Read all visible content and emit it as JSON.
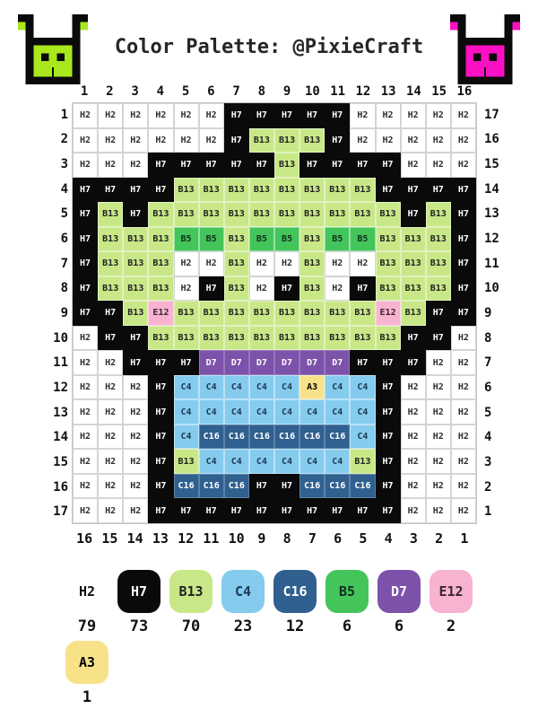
{
  "header": {
    "title": "Color Palette: @PixieCraft"
  },
  "icons": {
    "left": {
      "name": "green-monster-icon",
      "color": "#a8e81c"
    },
    "right": {
      "name": "pink-monster-icon",
      "color": "#fb10c4"
    }
  },
  "chart_data": {
    "type": "heatmap",
    "title": "Color Palette: @PixieCraft",
    "columns_top": [
      "1",
      "2",
      "3",
      "4",
      "5",
      "6",
      "7",
      "8",
      "9",
      "10",
      "11",
      "12",
      "13",
      "14",
      "15",
      "16"
    ],
    "columns_bottom": [
      "16",
      "15",
      "14",
      "13",
      "12",
      "11",
      "10",
      "9",
      "8",
      "7",
      "6",
      "5",
      "4",
      "3",
      "2",
      "1"
    ],
    "rows_left": [
      "1",
      "2",
      "3",
      "4",
      "5",
      "6",
      "7",
      "8",
      "9",
      "10",
      "11",
      "12",
      "13",
      "14",
      "15",
      "16",
      "17"
    ],
    "rows_right": [
      "17",
      "16",
      "15",
      "14",
      "13",
      "12",
      "11",
      "10",
      "9",
      "8",
      "7",
      "6",
      "5",
      "4",
      "3",
      "2",
      "1"
    ],
    "cells": [
      [
        "H2",
        "H2",
        "H2",
        "H2",
        "H2",
        "H2",
        "H7",
        "H7",
        "H7",
        "H7",
        "H7",
        "H2",
        "H2",
        "H2",
        "H2",
        "H2"
      ],
      [
        "H2",
        "H2",
        "H2",
        "H2",
        "H2",
        "H2",
        "H7",
        "B13",
        "B13",
        "B13",
        "H7",
        "H2",
        "H2",
        "H2",
        "H2",
        "H2"
      ],
      [
        "H2",
        "H2",
        "H2",
        "H7",
        "H7",
        "H7",
        "H7",
        "H7",
        "B13",
        "H7",
        "H7",
        "H7",
        "H7",
        "H2",
        "H2",
        "H2"
      ],
      [
        "H7",
        "H7",
        "H7",
        "H7",
        "B13",
        "B13",
        "B13",
        "B13",
        "B13",
        "B13",
        "B13",
        "B13",
        "H7",
        "H7",
        "H7",
        "H7"
      ],
      [
        "H7",
        "B13",
        "H7",
        "B13",
        "B13",
        "B13",
        "B13",
        "B13",
        "B13",
        "B13",
        "B13",
        "B13",
        "B13",
        "H7",
        "B13",
        "H7"
      ],
      [
        "H7",
        "B13",
        "B13",
        "B13",
        "B5",
        "B5",
        "B13",
        "B5",
        "B5",
        "B13",
        "B5",
        "B5",
        "B13",
        "B13",
        "B13",
        "H7"
      ],
      [
        "H7",
        "B13",
        "B13",
        "B13",
        "H2",
        "H2",
        "B13",
        "H2",
        "H2",
        "B13",
        "H2",
        "H2",
        "B13",
        "B13",
        "B13",
        "H7"
      ],
      [
        "H7",
        "B13",
        "B13",
        "B13",
        "H2",
        "H7",
        "B13",
        "H2",
        "H7",
        "B13",
        "H2",
        "H7",
        "B13",
        "B13",
        "B13",
        "H7"
      ],
      [
        "H7",
        "H7",
        "B13",
        "E12",
        "B13",
        "B13",
        "B13",
        "B13",
        "B13",
        "B13",
        "B13",
        "B13",
        "E12",
        "B13",
        "H7",
        "H7"
      ],
      [
        "H2",
        "H7",
        "H7",
        "B13",
        "B13",
        "B13",
        "B13",
        "B13",
        "B13",
        "B13",
        "B13",
        "B13",
        "B13",
        "H7",
        "H7",
        "H2"
      ],
      [
        "H2",
        "H2",
        "H7",
        "H7",
        "H7",
        "D7",
        "D7",
        "D7",
        "D7",
        "D7",
        "D7",
        "H7",
        "H7",
        "H7",
        "H2",
        "H2"
      ],
      [
        "H2",
        "H2",
        "H2",
        "H7",
        "C4",
        "C4",
        "C4",
        "C4",
        "C4",
        "A3",
        "C4",
        "C4",
        "H7",
        "H2",
        "H2",
        "H2"
      ],
      [
        "H2",
        "H2",
        "H2",
        "H7",
        "C4",
        "C4",
        "C4",
        "C4",
        "C4",
        "C4",
        "C4",
        "C4",
        "H7",
        "H2",
        "H2",
        "H2"
      ],
      [
        "H2",
        "H2",
        "H2",
        "H7",
        "C4",
        "C16",
        "C16",
        "C16",
        "C16",
        "C16",
        "C16",
        "C4",
        "H7",
        "H2",
        "H2",
        "H2"
      ],
      [
        "H2",
        "H2",
        "H2",
        "H7",
        "B13",
        "C4",
        "C4",
        "C4",
        "C4",
        "C4",
        "C4",
        "B13",
        "H7",
        "H2",
        "H2",
        "H2"
      ],
      [
        "H2",
        "H2",
        "H2",
        "H7",
        "C16",
        "C16",
        "C16",
        "H7",
        "H7",
        "C16",
        "C16",
        "C16",
        "H7",
        "H2",
        "H2",
        "H2"
      ],
      [
        "H2",
        "H2",
        "H2",
        "H7",
        "H7",
        "H7",
        "H7",
        "H7",
        "H7",
        "H7",
        "H7",
        "H7",
        "H7",
        "H2",
        "H2",
        "H2"
      ]
    ],
    "palette": {
      "H2": {
        "bg": "#ffffff",
        "fg": "#2e2e2e"
      },
      "H7": {
        "bg": "#0a0a0a",
        "fg": "#ffffff"
      },
      "B13": {
        "bg": "#c8e888",
        "fg": "#222222"
      },
      "C4": {
        "bg": "#85cbee",
        "fg": "#1d3a52"
      },
      "C16": {
        "bg": "#30608f",
        "fg": "#ffffff"
      },
      "B5": {
        "bg": "#43c55c",
        "fg": "#13301c"
      },
      "D7": {
        "bg": "#7c52aa",
        "fg": "#ffffff"
      },
      "E12": {
        "bg": "#f8b3d0",
        "fg": "#3a2630"
      },
      "A3": {
        "bg": "#f8e289",
        "fg": "#3a3categories21e"
      }
    },
    "legend": [
      {
        "code": "H2",
        "count": "79"
      },
      {
        "code": "H7",
        "count": "73"
      },
      {
        "code": "B13",
        "count": "70"
      },
      {
        "code": "C4",
        "count": "23"
      },
      {
        "code": "C16",
        "count": "12"
      },
      {
        "code": "B5",
        "count": "6"
      },
      {
        "code": "D7",
        "count": "6"
      },
      {
        "code": "E12",
        "count": "2"
      },
      {
        "code": "A3",
        "count": "1"
      }
    ]
  }
}
